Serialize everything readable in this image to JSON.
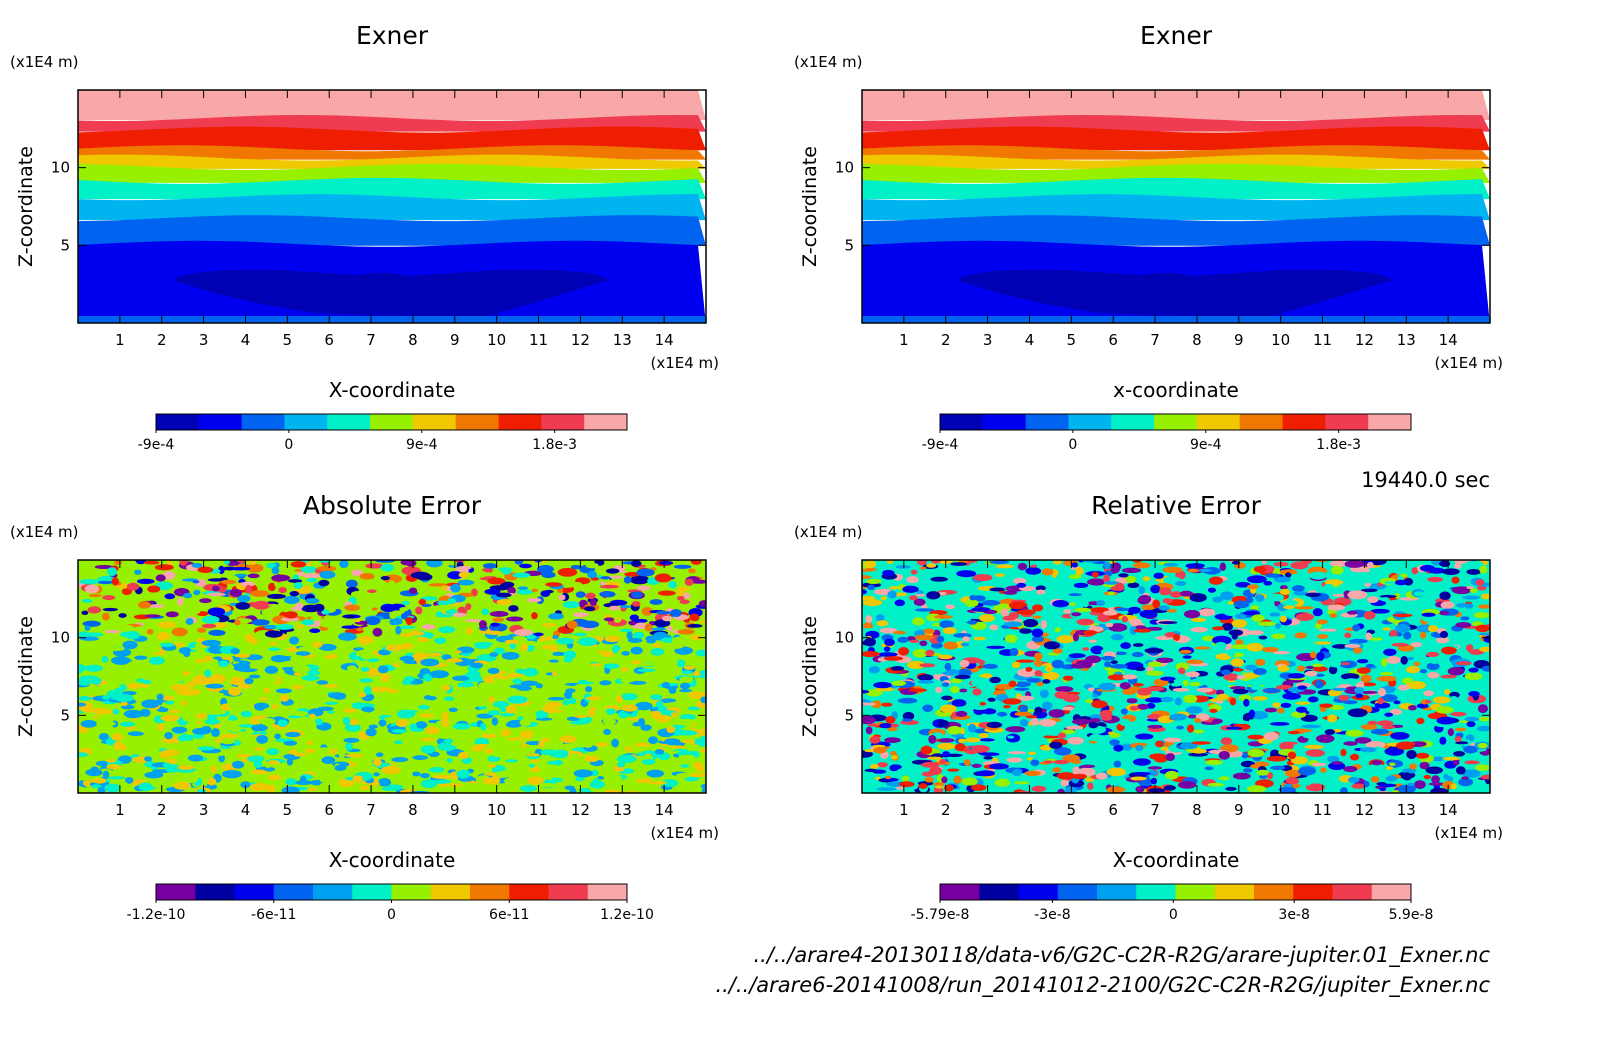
{
  "chart_data": [
    {
      "type": "contour",
      "title": "Exner",
      "xlabel": "X-coordinate",
      "ylabel": "Z-coordinate",
      "xunit": "(x1E4 m)",
      "yunit": "(x1E4 m)",
      "xlim": [
        0,
        15
      ],
      "ylim": [
        0,
        15
      ],
      "xticks": [
        1,
        2,
        3,
        4,
        5,
        6,
        7,
        8,
        9,
        10,
        11,
        12,
        13,
        14
      ],
      "yticks": [
        5,
        10
      ],
      "colorbar": {
        "colors": [
          "#0000b4",
          "#0000f0",
          "#0064f0",
          "#00b4f0",
          "#00f0c8",
          "#96f000",
          "#f0c800",
          "#f07800",
          "#f01e00",
          "#f03c50",
          "#f8a8a8"
        ],
        "lim": [
          -0.0009,
          0.00229
        ],
        "ticks": [
          {
            "value": -0.0009,
            "label": "-9e-4"
          },
          0,
          {
            "value": 0.0009,
            "label": "9e-4"
          },
          {
            "value": 0.0018,
            "label": "1.8e-3"
          }
        ]
      }
    },
    {
      "type": "contour",
      "title": "Exner",
      "xlabel": "x-coordinate",
      "ylabel": "Z-coordinate",
      "xunit": "(x1E4 m)",
      "yunit": "(x1E4 m)",
      "xlim": [
        0,
        15
      ],
      "ylim": [
        0,
        15
      ],
      "xticks": [
        1,
        2,
        3,
        4,
        5,
        6,
        7,
        8,
        9,
        10,
        11,
        12,
        13,
        14
      ],
      "yticks": [
        5,
        10
      ],
      "colorbar": {
        "colors": [
          "#0000b4",
          "#0000f0",
          "#0064f0",
          "#00b4f0",
          "#00f0c8",
          "#96f000",
          "#f0c800",
          "#f07800",
          "#f01e00",
          "#f03c50",
          "#f8a8a8"
        ],
        "lim": [
          -0.0009,
          0.00229
        ],
        "ticks": [
          {
            "value": -0.0009,
            "label": "-9e-4"
          },
          0,
          {
            "value": 0.0009,
            "label": "9e-4"
          },
          {
            "value": 0.0018,
            "label": "1.8e-3"
          }
        ]
      }
    },
    {
      "type": "contour",
      "title": "Absolute Error",
      "xlabel": "X-coordinate",
      "ylabel": "Z-coordinate",
      "xunit": "(x1E4 m)",
      "yunit": "(x1E4 m)",
      "xlim": [
        0,
        15
      ],
      "ylim": [
        0,
        15
      ],
      "xticks": [
        1,
        2,
        3,
        4,
        5,
        6,
        7,
        8,
        9,
        10,
        11,
        12,
        13,
        14
      ],
      "yticks": [
        5,
        10
      ],
      "colorbar": {
        "colors": [
          "#7800a0",
          "#0000a0",
          "#0000f0",
          "#0064f0",
          "#00a0f0",
          "#00f0c8",
          "#96f000",
          "#f0c800",
          "#f07800",
          "#f01e00",
          "#f03c50",
          "#f8a8a8"
        ],
        "lim": [
          -1.2e-10,
          1.2e-10
        ],
        "ticks": [
          -1.2e-10,
          -6e-11,
          0,
          6e-11,
          1.2e-10
        ]
      }
    },
    {
      "type": "contour",
      "title": "Relative Error",
      "xlabel": "X-coordinate",
      "ylabel": "Z-coordinate",
      "xunit": "(x1E4 m)",
      "yunit": "(x1E4 m)",
      "xlim": [
        0,
        15
      ],
      "ylim": [
        0,
        15
      ],
      "xticks": [
        1,
        2,
        3,
        4,
        5,
        6,
        7,
        8,
        9,
        10,
        11,
        12,
        13,
        14
      ],
      "yticks": [
        5,
        10
      ],
      "colorbar": {
        "colors": [
          "#7800a0",
          "#0000a0",
          "#0000f0",
          "#0064f0",
          "#00a0f0",
          "#00f0c8",
          "#96f000",
          "#f0c800",
          "#f07800",
          "#f01e00",
          "#f03c50",
          "#f8a8a8"
        ],
        "lim": [
          -5.79e-08,
          5.9e-08
        ],
        "ticks": [
          -5.79e-08,
          -3e-08,
          0,
          3e-08,
          5.9e-08
        ]
      }
    }
  ],
  "footer": {
    "time": "19440.0 sec",
    "files": [
      "../../arare4-20130118/data-v6/G2C-C2R-R2G/arare-jupiter.01_Exner.nc",
      "../../arare6-20141008/run_20141012-2100/G2C-C2R-R2G/jupiter_Exner.nc"
    ]
  }
}
